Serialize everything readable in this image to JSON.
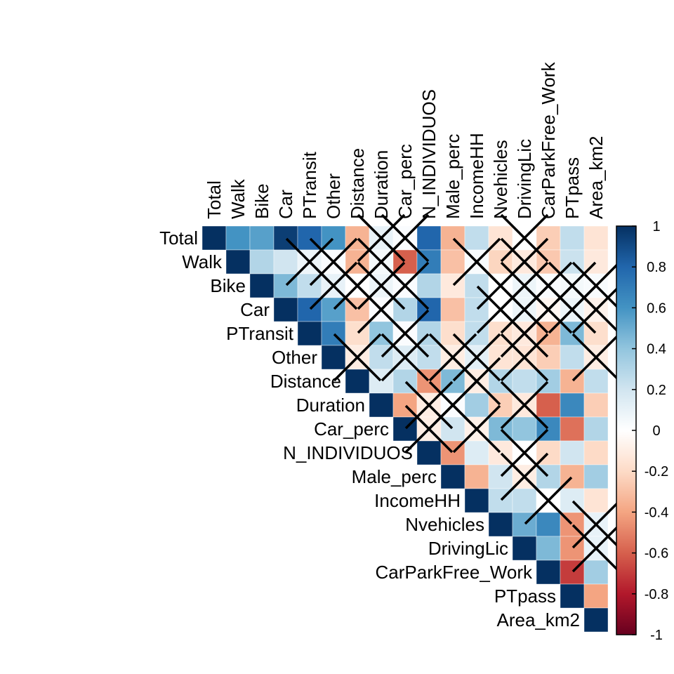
{
  "chart_data": {
    "type": "heatmap",
    "title": "",
    "variables": [
      "Total",
      "Walk",
      "Bike",
      "Car",
      "PTransit",
      "Other",
      "Distance",
      "Duration",
      "Car_perc",
      "N_INDIVIDUOS",
      "Male_perc",
      "IncomeHH",
      "Nvehicles",
      "DrivingLic",
      "CarParkFree_Work",
      "PTpass",
      "Area_km2"
    ],
    "layout": "upper-triangle",
    "insignificant_mark": "X",
    "rows": [
      {
        "name": "Total",
        "values": [
          1,
          0.6,
          0.55,
          0.95,
          0.8,
          0.6,
          -0.35,
          0.1,
          0.02,
          0.8,
          -0.35,
          0.25,
          -0.15,
          0.0,
          -0.25,
          0.25,
          -0.15
        ],
        "insignificant": [
          7,
          8,
          13
        ]
      },
      {
        "name": "Walk",
        "values": [
          1,
          0.3,
          0.2,
          0.08,
          0.02,
          -0.35,
          0.05,
          -0.6,
          0.7,
          -0.3,
          0.03,
          -0.22,
          -0.12,
          -0.27,
          0.22,
          -0.12
        ],
        "insignificant": [
          4,
          5,
          7,
          11,
          13
        ]
      },
      {
        "name": "Bike",
        "values": [
          1,
          0.45,
          0.25,
          0.1,
          0.0,
          0.08,
          0.02,
          0.3,
          -0.12,
          0.25,
          0.0,
          0.08,
          0.02,
          0.05,
          0.03
        ],
        "insignificant": [
          5,
          6,
          7,
          8,
          12,
          13,
          14,
          15,
          16
        ]
      },
      {
        "name": "Car",
        "values": [
          1,
          0.8,
          0.55,
          -0.3,
          0.02,
          0.3,
          0.8,
          -0.3,
          0.25,
          0.0,
          0.08,
          -0.05,
          0.08,
          -0.07
        ],
        "insignificant": [
          7,
          12,
          13,
          14,
          15,
          16
        ]
      },
      {
        "name": "PTransit",
        "values": [
          1,
          0.7,
          -0.18,
          0.4,
          0.02,
          0.3,
          -0.18,
          0.25,
          -0.18,
          -0.12,
          -0.35,
          0.45,
          -0.18
        ],
        "insignificant": [
          8,
          13
        ]
      },
      {
        "name": "Other",
        "values": [
          1,
          -0.1,
          0.25,
          0.15,
          0.25,
          -0.1,
          0.12,
          -0.15,
          -0.15,
          -0.25,
          0.25,
          -0.1
        ],
        "insignificant": [
          6,
          8,
          10,
          11,
          13,
          16
        ]
      },
      {
        "name": "Distance",
        "values": [
          1,
          0.15,
          0.3,
          -0.45,
          0.45,
          -0.1,
          0.3,
          0.25,
          0.35,
          -0.35,
          0.25
        ],
        "insignificant": [
          11
        ]
      },
      {
        "name": "Duration",
        "values": [
          1,
          -0.4,
          -0.1,
          0.02,
          0.35,
          -0.25,
          -0.12,
          -0.6,
          0.65,
          -0.25
        ],
        "insignificant": [
          9,
          10,
          13
        ]
      },
      {
        "name": "Car_perc",
        "values": [
          1,
          -0.1,
          0.2,
          -0.08,
          0.45,
          0.4,
          0.65,
          -0.55,
          0.3
        ],
        "insignificant": [
          9,
          11
        ]
      },
      {
        "name": "N_INDIVIDUOS",
        "values": [
          1,
          -0.45,
          0.15,
          -0.12,
          0.0,
          -0.2,
          0.2,
          -0.2
        ],
        "insignificant": [
          13
        ]
      },
      {
        "name": "Male_perc",
        "values": [
          1,
          -0.35,
          0.2,
          -0.1,
          0.3,
          -0.35,
          0.35
        ],
        "insignificant": [
          13
        ]
      },
      {
        "name": "IncomeHH",
        "values": [
          1,
          0.25,
          0.25,
          0.0,
          0.15,
          -0.15
        ],
        "insignificant": [
          14
        ]
      },
      {
        "name": "Nvehicles",
        "values": [
          1,
          0.5,
          0.65,
          -0.45,
          0.1
        ],
        "insignificant": [
          16
        ]
      },
      {
        "name": "DrivingLic",
        "values": [
          1,
          0.45,
          -0.45,
          0.1
        ],
        "insignificant": [
          16
        ]
      },
      {
        "name": "CarParkFree_Work",
        "values": [
          1,
          -0.7,
          0.35
        ],
        "insignificant": []
      },
      {
        "name": "PTpass",
        "values": [
          1,
          -0.4
        ],
        "insignificant": []
      },
      {
        "name": "Area_km2",
        "values": [
          1
        ],
        "insignificant": []
      }
    ],
    "colorbar": {
      "range": [
        -1,
        1
      ],
      "ticks": [
        "1",
        "0.8",
        "0.6",
        "0.4",
        "0.2",
        "0",
        "-0.2",
        "-0.4",
        "-0.6",
        "-0.8",
        "-1"
      ],
      "tick_values": [
        1,
        0.8,
        0.6,
        0.4,
        0.2,
        0,
        -0.2,
        -0.4,
        -0.6,
        -0.8,
        -1
      ],
      "placement": "right"
    },
    "palette": [
      "#67001F",
      "#B2182B",
      "#D6604D",
      "#F4A582",
      "#FDDBC7",
      "#FFFFFF",
      "#D1E5F0",
      "#92C5DE",
      "#4393C3",
      "#2166AC",
      "#053061"
    ]
  }
}
